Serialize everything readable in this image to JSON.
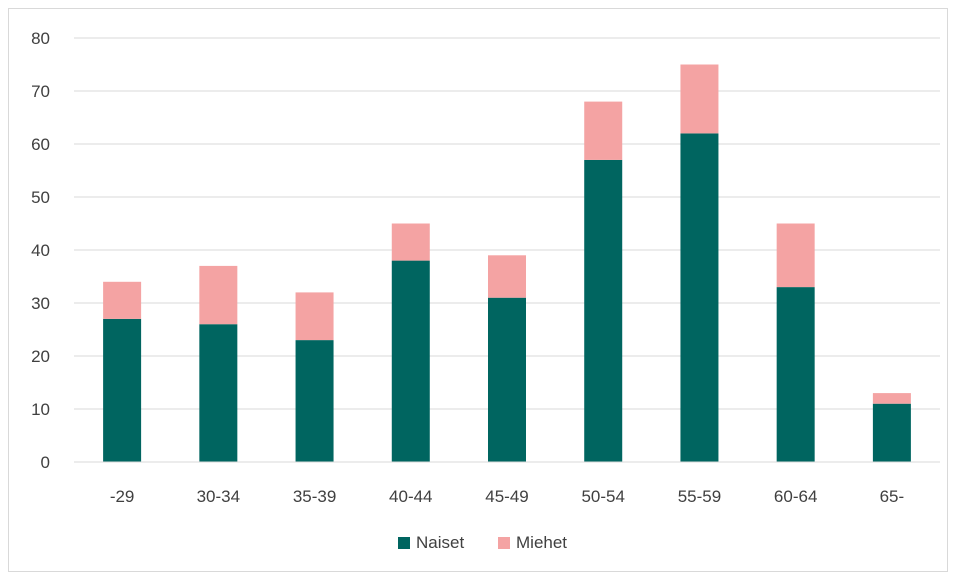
{
  "chart_data": {
    "type": "bar",
    "stacked": true,
    "categories": [
      "-29",
      "30-34",
      "35-39",
      "40-44",
      "45-49",
      "50-54",
      "55-59",
      "60-64",
      "65-"
    ],
    "series": [
      {
        "name": "Naiset",
        "color": "#006560",
        "values": [
          27,
          26,
          23,
          38,
          31,
          57,
          62,
          33,
          11
        ]
      },
      {
        "name": "Miehet",
        "color": "#f4a3a3",
        "values": [
          7,
          11,
          9,
          7,
          8,
          11,
          13,
          12,
          2
        ]
      }
    ],
    "ylim": [
      0,
      80
    ],
    "yticks": [
      0,
      10,
      20,
      30,
      40,
      50,
      60,
      70,
      80
    ],
    "grid": true,
    "legend_position": "bottom",
    "title": "",
    "xlabel": "",
    "ylabel": ""
  }
}
